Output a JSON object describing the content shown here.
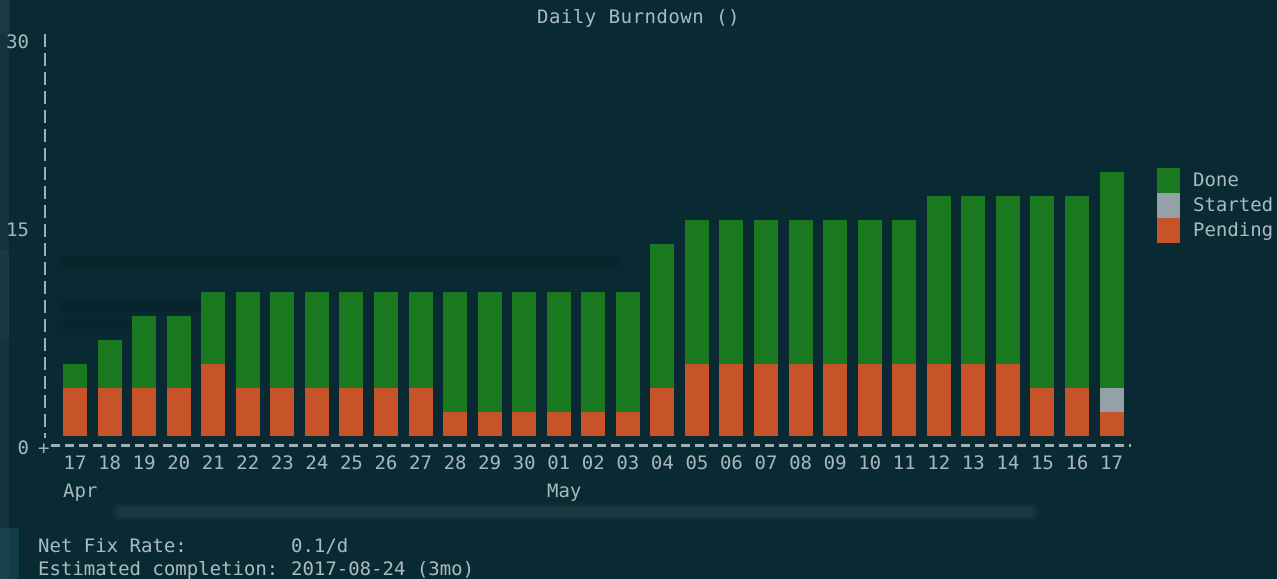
{
  "title": "Daily Burndown ()",
  "y_axis": {
    "ticks": [
      "30",
      "15",
      "0"
    ],
    "origin": "+"
  },
  "x_axis": {
    "months": [
      "Apr",
      "May"
    ]
  },
  "legend": [
    {
      "label": "Done",
      "color": "#1a781e"
    },
    {
      "label": "Started",
      "color": "#94a1a7"
    },
    {
      "label": "Pending",
      "color": "#c75329"
    }
  ],
  "footer": {
    "line1_label": "Net Fix Rate:",
    "line1_value": "0.1/d",
    "line2_label": "Estimated completion:",
    "line2_value": "2017-08-24 (3mo)"
  },
  "colors": {
    "background": "#0a2a33",
    "done": "#1a781e",
    "started": "#94a1a7",
    "pending": "#c75329",
    "text": "#abbac0",
    "axis": "#9db0b6"
  },
  "chart_data": {
    "type": "bar",
    "stacked": true,
    "title": "Daily Burndown ()",
    "xlabel": "",
    "ylabel": "",
    "ylim": [
      0,
      30
    ],
    "y_ticks": [
      0,
      15,
      30
    ],
    "legend_position": "right",
    "grid": false,
    "categories": [
      "17",
      "18",
      "19",
      "20",
      "21",
      "22",
      "23",
      "24",
      "25",
      "26",
      "27",
      "28",
      "29",
      "30",
      "01",
      "02",
      "03",
      "04",
      "05",
      "06",
      "07",
      "08",
      "09",
      "10",
      "11",
      "12",
      "13",
      "14",
      "15",
      "16",
      "17"
    ],
    "category_month_breaks": [
      {
        "month": "Apr",
        "at_category_index": 0
      },
      {
        "month": "May",
        "at_category_index": 14
      }
    ],
    "series": [
      {
        "name": "Pending",
        "color": "#c75329",
        "values": [
          4,
          4,
          4,
          4,
          6,
          4,
          4,
          4,
          4,
          4,
          4,
          2,
          2,
          2,
          2,
          2,
          2,
          4,
          6,
          6,
          6,
          6,
          6,
          6,
          6,
          6,
          6,
          6,
          4,
          4,
          2
        ]
      },
      {
        "name": "Started",
        "color": "#94a1a7",
        "values": [
          0,
          0,
          0,
          0,
          0,
          0,
          0,
          0,
          0,
          0,
          0,
          0,
          0,
          0,
          0,
          0,
          0,
          0,
          0,
          0,
          0,
          0,
          0,
          0,
          0,
          0,
          0,
          0,
          0,
          0,
          2
        ]
      },
      {
        "name": "Done",
        "color": "#1a781e",
        "values": [
          2,
          4,
          6,
          6,
          6,
          8,
          8,
          8,
          8,
          8,
          8,
          10,
          10,
          10,
          10,
          10,
          10,
          12,
          12,
          12,
          12,
          12,
          12,
          12,
          12,
          14,
          14,
          14,
          16,
          16,
          18
        ]
      }
    ]
  }
}
